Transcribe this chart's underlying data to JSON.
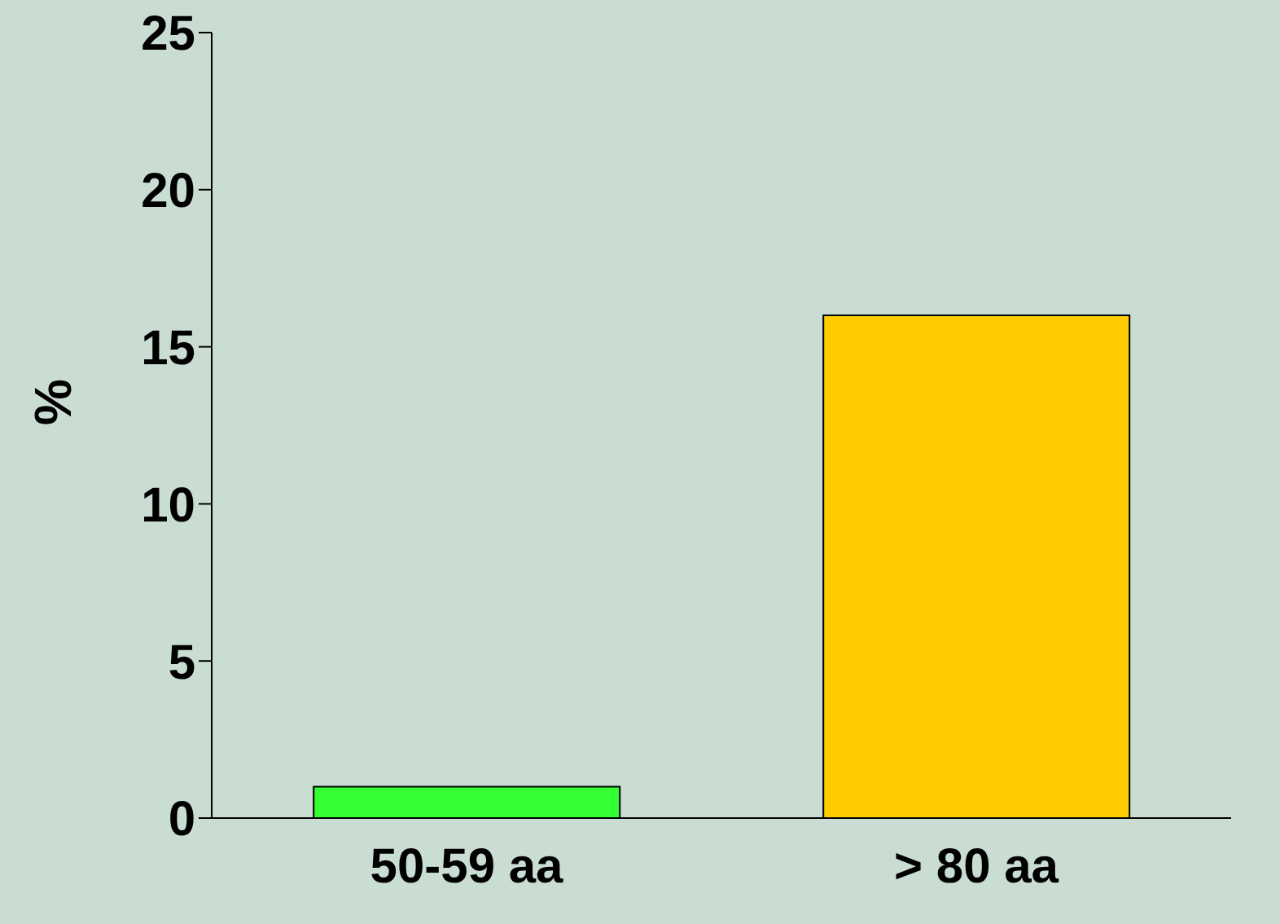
{
  "chart_data": {
    "type": "bar",
    "ylabel": "%",
    "categories": [
      "50-59 aa",
      "> 80 aa"
    ],
    "values": [
      1,
      16
    ],
    "colors": [
      "#33ff33",
      "#ffcc00"
    ],
    "ylim": [
      0,
      25
    ],
    "yticks": [
      0,
      5,
      10,
      15,
      20,
      25
    ],
    "grid": false
  }
}
